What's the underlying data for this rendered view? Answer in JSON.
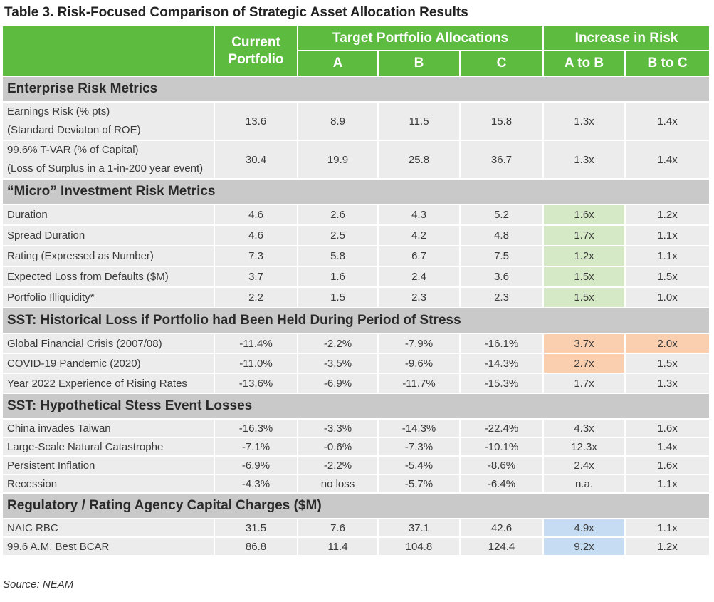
{
  "title": "Table 3. Risk-Focused Comparison of Strategic Asset Allocation Results",
  "header": {
    "current_portfolio": "Current Portfolio",
    "target_group": "Target Portfolio Allocations",
    "increase_group": "Increase in Risk",
    "col_a": "A",
    "col_b": "B",
    "col_c": "C",
    "col_ab": "A to B",
    "col_bc": "B to C"
  },
  "sections": {
    "enterprise": {
      "title": "Enterprise Risk Metrics",
      "rows": [
        {
          "label": "Earnings Risk (% pts)",
          "sub": "(Standard Deviaton of ROE)",
          "values": [
            "13.6",
            "8.9",
            "11.5",
            "15.8",
            "1.3x",
            "1.4x"
          ]
        },
        {
          "label": "99.6% T-VAR (% of Capital)",
          "sub": "(Loss of Surplus in a 1-in-200 year event)",
          "values": [
            "30.4",
            "19.9",
            "25.8",
            "36.7",
            "1.3x",
            "1.4x"
          ]
        }
      ]
    },
    "micro": {
      "title": "“Micro” Investment Risk Metrics",
      "rows": [
        {
          "label": "Duration",
          "values": [
            "4.6",
            "2.6",
            "4.3",
            "5.2",
            "1.6x",
            "1.2x"
          ]
        },
        {
          "label": "Spread Duration",
          "values": [
            "4.6",
            "2.5",
            "4.2",
            "4.8",
            "1.7x",
            "1.1x"
          ]
        },
        {
          "label": "Rating (Expressed as Number)",
          "values": [
            "7.3",
            "5.8",
            "6.7",
            "7.5",
            "1.2x",
            "1.1x"
          ]
        },
        {
          "label": "Expected Loss from Defaults ($M)",
          "values": [
            "3.7",
            "1.6",
            "2.4",
            "3.6",
            "1.5x",
            "1.5x"
          ]
        },
        {
          "label": "Portfolio Illiquidity*",
          "values": [
            "2.2",
            "1.5",
            "2.3",
            "2.3",
            "1.5x",
            "1.0x"
          ]
        }
      ]
    },
    "historical": {
      "title": "SST: Historical Loss if Portfolio had Been Held During Period of Stress",
      "rows": [
        {
          "label": "Global Financial Crisis (2007/08)",
          "values": [
            "-11.4%",
            "-2.2%",
            "-7.9%",
            "-16.1%",
            "3.7x",
            "2.0x"
          ]
        },
        {
          "label": "COVID-19 Pandemic (2020)",
          "values": [
            "-11.0%",
            "-3.5%",
            "-9.6%",
            "-14.3%",
            "2.7x",
            "1.5x"
          ]
        },
        {
          "label": "Year 2022 Experience of Rising Rates",
          "values": [
            "-13.6%",
            "-6.9%",
            "-11.7%",
            "-15.3%",
            "1.7x",
            "1.3x"
          ]
        }
      ]
    },
    "hypothetical": {
      "title": "SST: Hypothetical Stess Event Losses",
      "rows": [
        {
          "label": "China invades Taiwan",
          "values": [
            "-16.3%",
            "-3.3%",
            "-14.3%",
            "-22.4%",
            "4.3x",
            "1.6x"
          ]
        },
        {
          "label": "Large-Scale Natural Catastrophe",
          "values": [
            "-7.1%",
            "-0.6%",
            "-7.3%",
            "-10.1%",
            "12.3x",
            "1.4x"
          ]
        },
        {
          "label": "Persistent Inflation",
          "values": [
            "-6.9%",
            "-2.2%",
            "-5.4%",
            "-8.6%",
            "2.4x",
            "1.6x"
          ]
        },
        {
          "label": "Recession",
          "values": [
            "-4.3%",
            "no loss",
            "-5.7%",
            "-6.4%",
            "n.a.",
            "1.1x"
          ]
        }
      ]
    },
    "regulatory": {
      "title": "Regulatory / Rating Agency Capital Charges ($M)",
      "rows": [
        {
          "label": "NAIC RBC",
          "values": [
            "31.5",
            "7.6",
            "37.1",
            "42.6",
            "4.9x",
            "1.1x"
          ]
        },
        {
          "label": "99.6 A.M. Best BCAR",
          "values": [
            "86.8",
            "11.4",
            "104.8",
            "124.4",
            "9.2x",
            "1.2x"
          ]
        }
      ]
    }
  },
  "highlight_colors": {
    "green": "#d6e9c6",
    "orange": "#f9cfb0",
    "blue": "#c6dcf2",
    "header": "#5dbb3f",
    "section": "#c9c9c9"
  },
  "source": "Source: NEAM"
}
